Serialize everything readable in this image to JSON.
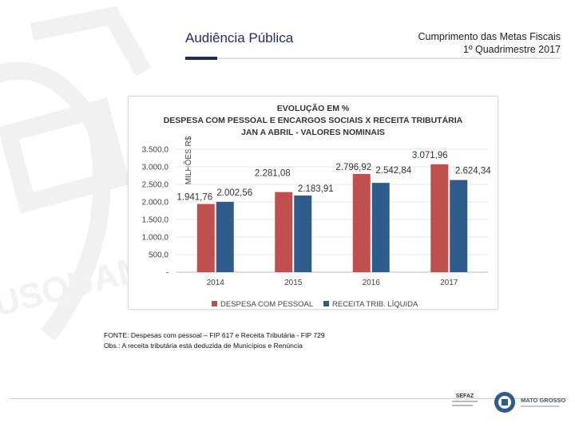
{
  "header": {
    "title": "Audiência Pública",
    "subtitle_line1": "Cumprimento das Metas Fiscais",
    "subtitle_line2": "1º Quadrimestre 2017"
  },
  "watermark": {
    "text": "USQUAM"
  },
  "chart_data": {
    "type": "bar",
    "title_lines": [
      "EVOLUÇÃO EM %",
      "DESPESA COM PESSOAL E ENCARGOS SOCIAIS X RECEITA TRIBUTÁRIA",
      "JAN A ABRIL - VALORES NOMINAIS"
    ],
    "ylabel": "MILHÕES R$",
    "xlabel": "",
    "categories": [
      "2014",
      "2015",
      "2016",
      "2017"
    ],
    "series": [
      {
        "name": "DESPESA COM PESSOAL",
        "color": "#c0504d",
        "values": [
          1941.76,
          2281.08,
          2796.92,
          3071.96
        ],
        "labels": [
          "1.941,76",
          "2.281,08",
          "2.796,92",
          "3.071,96"
        ]
      },
      {
        "name": "RECEITA TRIB. LÍQUIDA",
        "color": "#2f5c8a",
        "values": [
          2002.56,
          2183.91,
          2542.84,
          2624.34
        ],
        "labels": [
          "2.002,56",
          "2.183,91",
          "2.542,84",
          "2.624,34"
        ]
      }
    ],
    "ylim": [
      0,
      3500
    ],
    "yticks": [
      0,
      500,
      1000,
      1500,
      2000,
      2500,
      3000,
      3500
    ],
    "ytick_labels": [
      "-",
      "500,0",
      "1.000,0",
      "1.500,0",
      "2.000,0",
      "2.500,0",
      "3.000,0",
      "3.500,0"
    ],
    "legend_position": "bottom"
  },
  "notes": {
    "source": "FONTE: Despesas com pessoal – FIP 617 e Receita Tributária - FIP 729",
    "obs": "Obs.: A receita tributária está deduzida de Municípios e Renúncia"
  },
  "footer": {
    "logo1_text": "SEFAZ",
    "logo2_text": "MATO GROSSO"
  }
}
